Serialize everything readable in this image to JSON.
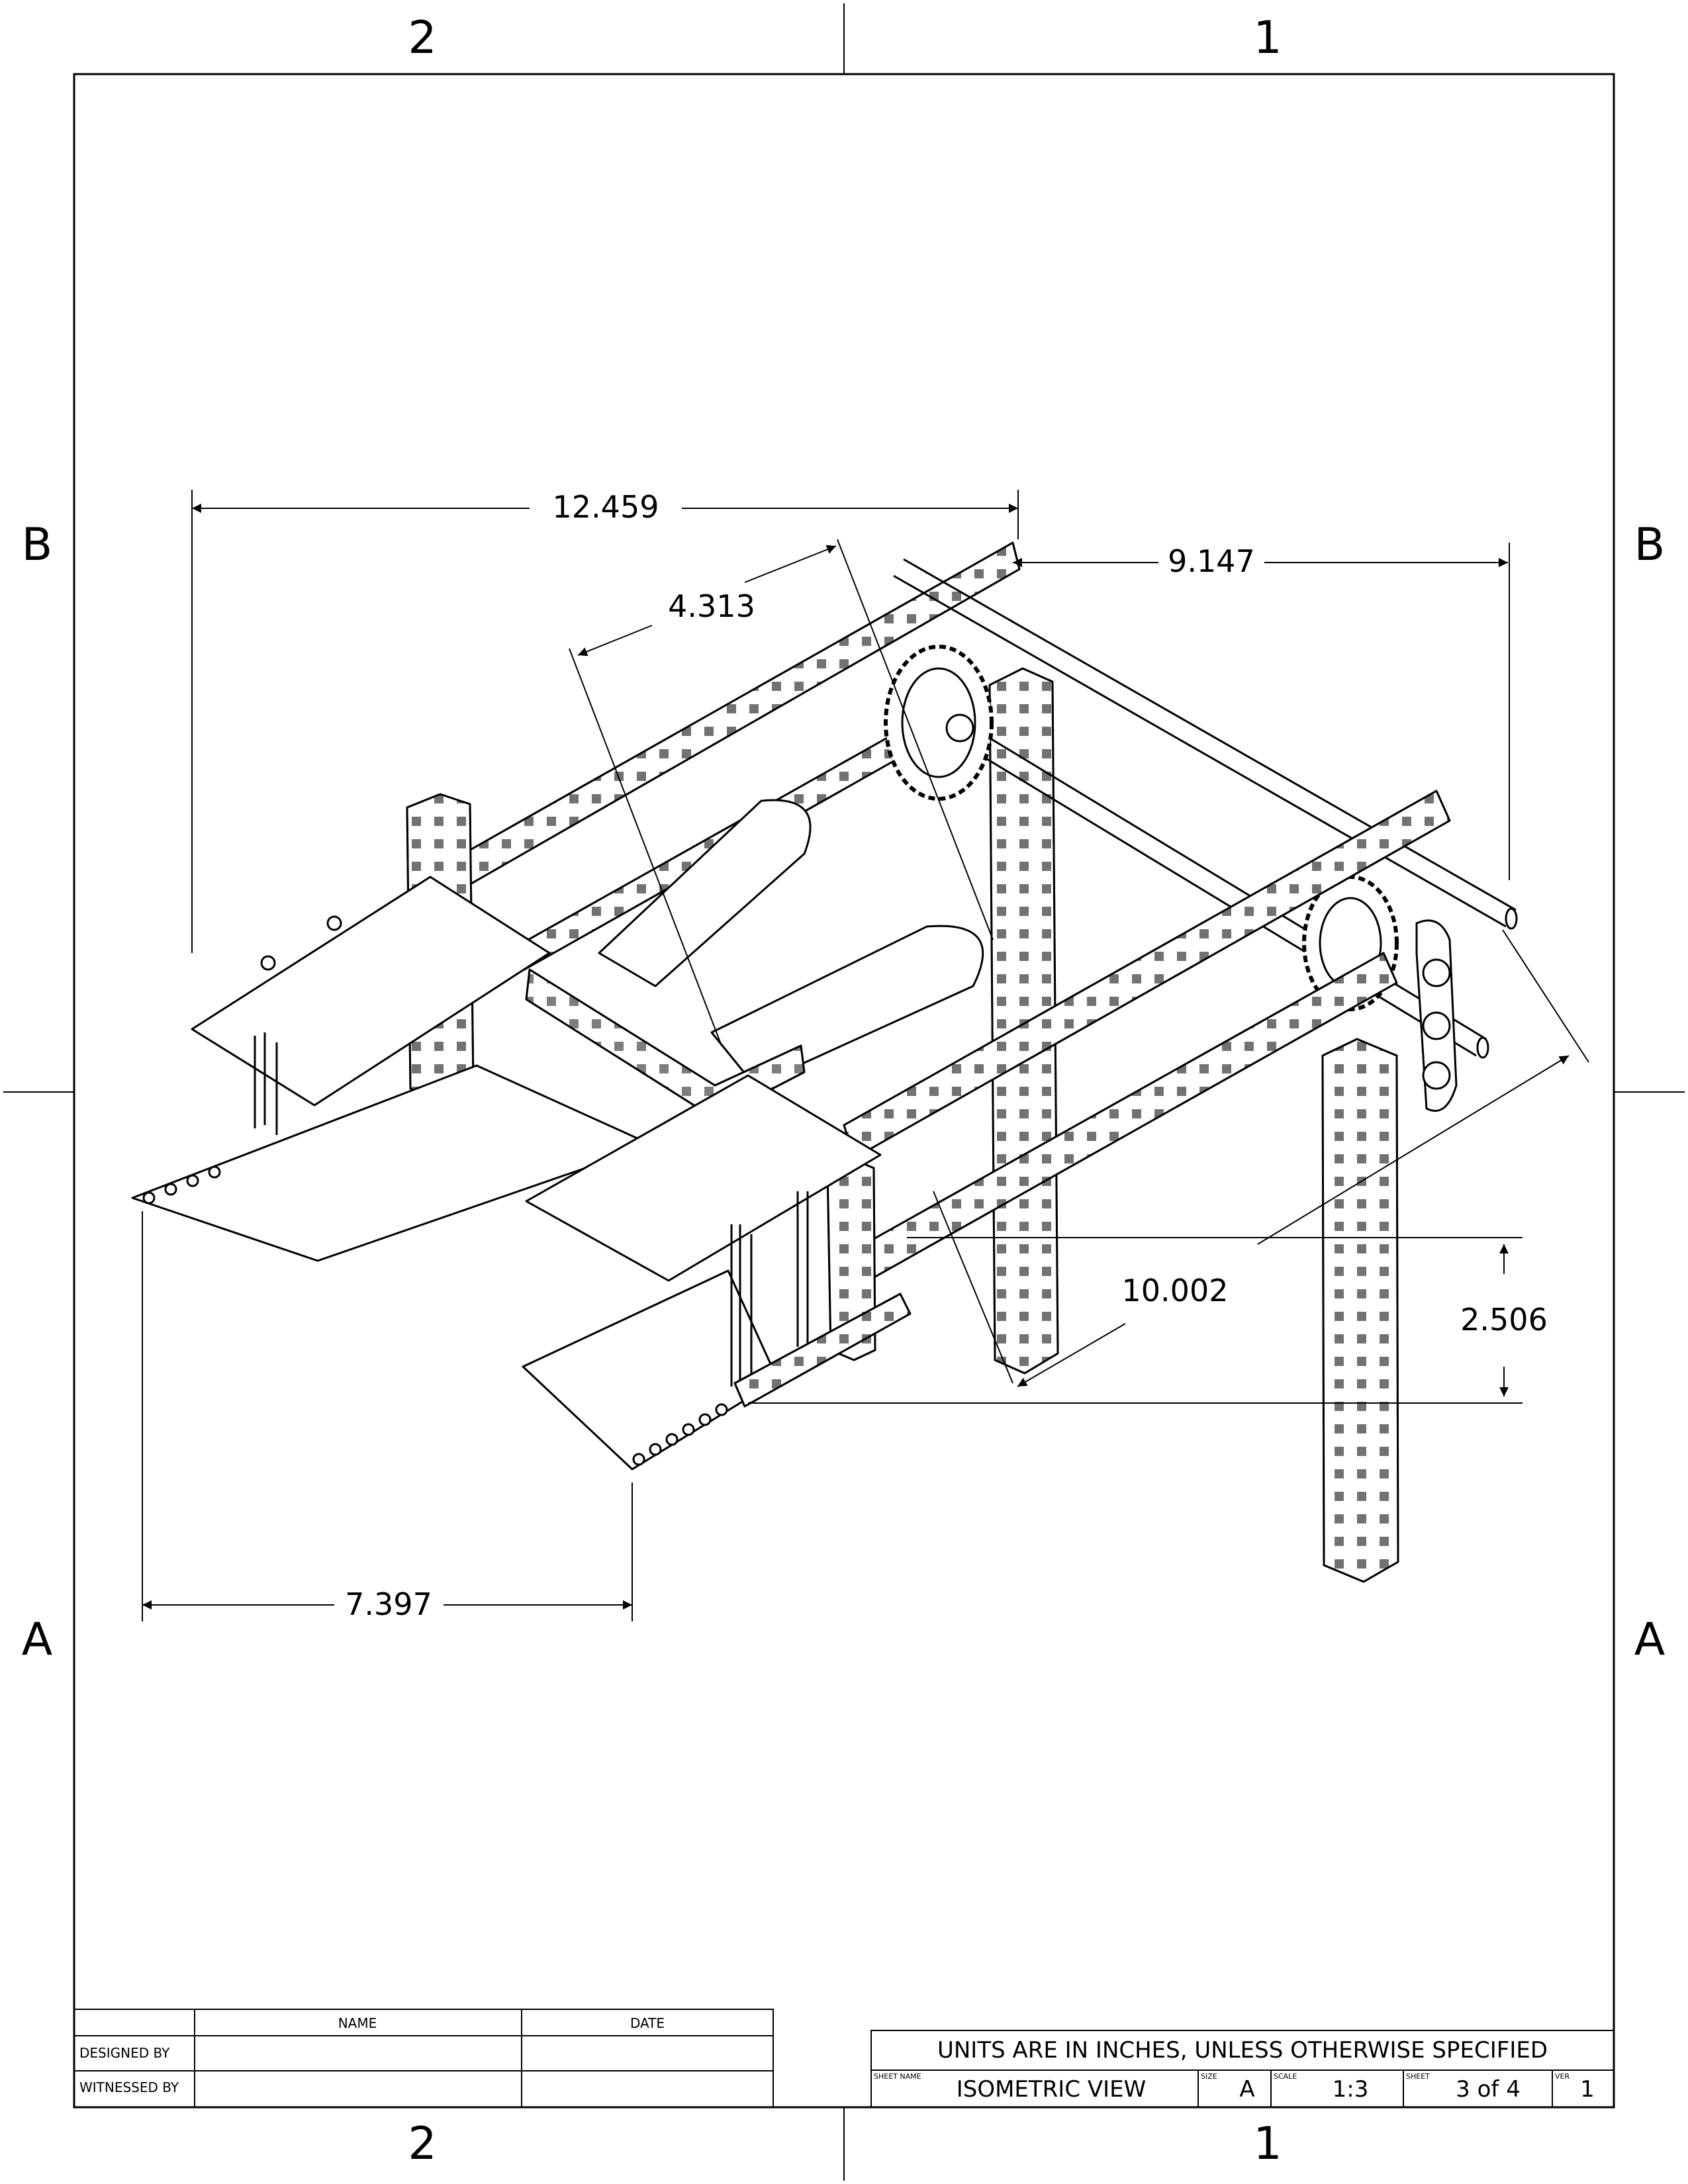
{
  "zones": {
    "top_left": "2",
    "top_right": "1",
    "bottom_left": "2",
    "bottom_right": "1",
    "left_upper": "B",
    "left_lower": "A",
    "right_upper": "B",
    "right_lower": "A"
  },
  "dimensions": {
    "overall_width": "12.459",
    "depth_right": "9.147",
    "plate_width": "4.313",
    "diagonal": "10.002",
    "height_offset": "2.506",
    "flap_width": "7.397"
  },
  "signature_block": {
    "name_header": "NAME",
    "date_header": "DATE",
    "designed_by": "DESIGNED BY",
    "witnessed_by": "WITNESSED BY"
  },
  "title_block": {
    "units_note": "UNITS ARE IN INCHES, UNLESS OTHERWISE SPECIFIED",
    "sheet_name_label": "SHEET NAME",
    "sheet_name": "ISOMETRIC VIEW",
    "size_label": "SIZE",
    "size": "A",
    "scale_label": "SCALE",
    "scale": "1:3",
    "sheet_label": "SHEET",
    "sheet": "3 of 4",
    "ver_label": "VER",
    "ver": "1"
  }
}
